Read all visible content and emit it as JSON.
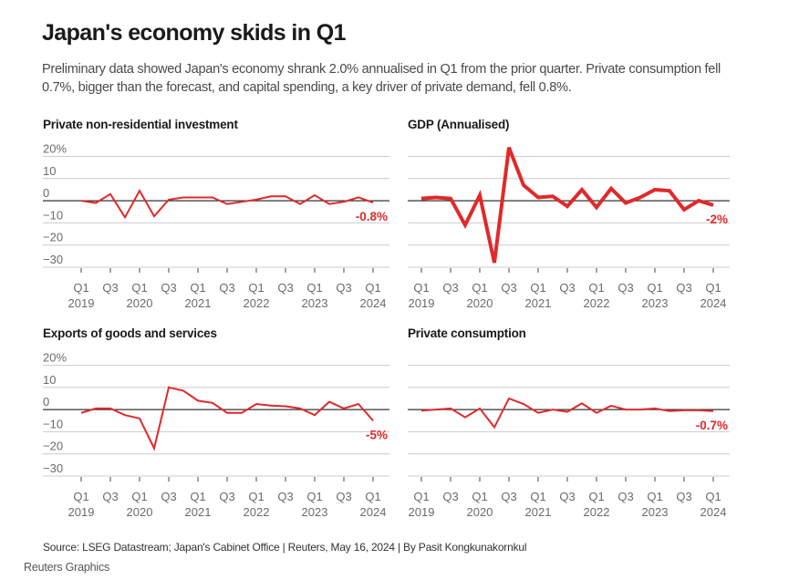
{
  "header": {
    "title": "Japan's economy skids in Q1",
    "subtitle": "Preliminary data showed Japan's economy shrank 2.0% annualised in Q1 from the prior quarter. Private consumption fell 0.7%, bigger than the forecast, and capital spending, a key driver of private demand, fell 0.8%."
  },
  "footer": {
    "source": "Source: LSEG Datastream; Japan's Cabinet Office | Reuters, May 16, 2024 | By Pasit Kongkunakornkul",
    "credit": "Reuters Graphics"
  },
  "colors": {
    "line": "#e0292b",
    "label": "#e0292b",
    "grid": "#cccccc",
    "zero": "#333333",
    "axis_text": "#6b6b6b"
  },
  "chart_data": [
    {
      "id": "investment",
      "type": "line",
      "title": "Private non-residential investment",
      "ylabel": "",
      "xlabel": "",
      "ylim": [
        -30,
        20
      ],
      "yticks": [
        20,
        10,
        0,
        -10,
        -20,
        -30
      ],
      "ytick_labels": [
        "20%",
        "10",
        "0",
        "−10",
        "−20",
        "−30"
      ],
      "show_y_labels": true,
      "grid": true,
      "x": [
        "Q1 2019",
        "Q2 2019",
        "Q3 2019",
        "Q4 2019",
        "Q1 2020",
        "Q2 2020",
        "Q3 2020",
        "Q4 2020",
        "Q1 2021",
        "Q2 2021",
        "Q3 2021",
        "Q4 2021",
        "Q1 2022",
        "Q2 2022",
        "Q3 2022",
        "Q4 2022",
        "Q1 2023",
        "Q2 2023",
        "Q3 2023",
        "Q4 2023",
        "Q1 2024"
      ],
      "xtick_labels": [
        [
          "Q1",
          "2019"
        ],
        [
          "Q3",
          ""
        ],
        [
          "Q1",
          "2020"
        ],
        [
          "Q3",
          ""
        ],
        [
          "Q1",
          "2021"
        ],
        [
          "Q3",
          ""
        ],
        [
          "Q1",
          "2022"
        ],
        [
          "Q3",
          ""
        ],
        [
          "Q1",
          "2023"
        ],
        [
          "Q3",
          ""
        ],
        [
          "Q1",
          "2024"
        ]
      ],
      "values": [
        0,
        -1,
        3,
        -7.5,
        4.5,
        -7,
        0.5,
        1.5,
        1.5,
        1.5,
        -1.5,
        -0.5,
        0.5,
        2,
        2,
        -1.5,
        2.5,
        -1.5,
        -0.5,
        1.5,
        -0.8
      ],
      "end_label": "-0.8%",
      "thick": false
    },
    {
      "id": "gdp",
      "type": "line",
      "title": "GDP (Annualised)",
      "ylabel": "",
      "xlabel": "",
      "ylim": [
        -30,
        20
      ],
      "yticks": [
        20,
        10,
        0,
        -10,
        -20,
        -30
      ],
      "ytick_labels": [],
      "show_y_labels": false,
      "grid": true,
      "x": [
        "Q1 2019",
        "Q2 2019",
        "Q3 2019",
        "Q4 2019",
        "Q1 2020",
        "Q2 2020",
        "Q3 2020",
        "Q4 2020",
        "Q1 2021",
        "Q2 2021",
        "Q3 2021",
        "Q4 2021",
        "Q1 2022",
        "Q2 2022",
        "Q3 2022",
        "Q4 2022",
        "Q1 2023",
        "Q2 2023",
        "Q3 2023",
        "Q4 2023",
        "Q1 2024"
      ],
      "xtick_labels": [
        [
          "Q1",
          "2019"
        ],
        [
          "Q3",
          ""
        ],
        [
          "Q1",
          "2020"
        ],
        [
          "Q3",
          ""
        ],
        [
          "Q1",
          "2021"
        ],
        [
          "Q3",
          ""
        ],
        [
          "Q1",
          "2022"
        ],
        [
          "Q3",
          ""
        ],
        [
          "Q1",
          "2023"
        ],
        [
          "Q3",
          ""
        ],
        [
          "Q1",
          "2024"
        ]
      ],
      "values": [
        1,
        1.5,
        1,
        -11,
        2.5,
        -28,
        24,
        7,
        1.5,
        2,
        -2.5,
        5,
        -3,
        5.5,
        -1,
        1.5,
        5,
        4.5,
        -4,
        0,
        -2
      ],
      "end_label": "-2%",
      "thick": true
    },
    {
      "id": "exports",
      "type": "line",
      "title": "Exports of goods and services",
      "ylabel": "",
      "xlabel": "",
      "ylim": [
        -30,
        20
      ],
      "yticks": [
        20,
        10,
        0,
        -10,
        -20,
        -30
      ],
      "ytick_labels": [
        "20%",
        "10",
        "0",
        "−10",
        "−20",
        "−30"
      ],
      "show_y_labels": true,
      "grid": true,
      "x": [
        "Q1 2019",
        "Q2 2019",
        "Q3 2019",
        "Q4 2019",
        "Q1 2020",
        "Q2 2020",
        "Q3 2020",
        "Q4 2020",
        "Q1 2021",
        "Q2 2021",
        "Q3 2021",
        "Q4 2021",
        "Q1 2022",
        "Q2 2022",
        "Q3 2022",
        "Q4 2022",
        "Q1 2023",
        "Q2 2023",
        "Q3 2023",
        "Q4 2023",
        "Q1 2024"
      ],
      "xtick_labels": [
        [
          "Q1",
          "2019"
        ],
        [
          "Q3",
          ""
        ],
        [
          "Q1",
          "2020"
        ],
        [
          "Q3",
          ""
        ],
        [
          "Q1",
          "2021"
        ],
        [
          "Q3",
          ""
        ],
        [
          "Q1",
          "2022"
        ],
        [
          "Q3",
          ""
        ],
        [
          "Q1",
          "2023"
        ],
        [
          "Q3",
          ""
        ],
        [
          "Q1",
          "2024"
        ]
      ],
      "values": [
        -1.5,
        0.5,
        0.5,
        -2.5,
        -4,
        -17.5,
        10,
        8.5,
        4,
        3,
        -1.5,
        -1.5,
        2.5,
        1.8,
        1.5,
        0.5,
        -2.5,
        3.5,
        0.5,
        2.5,
        -5
      ],
      "end_label": "-5%",
      "thick": false
    },
    {
      "id": "consumption",
      "type": "line",
      "title": "Private consumption",
      "ylabel": "",
      "xlabel": "",
      "ylim": [
        -30,
        20
      ],
      "yticks": [
        20,
        10,
        0,
        -10,
        -20,
        -30
      ],
      "ytick_labels": [],
      "show_y_labels": false,
      "grid": true,
      "x": [
        "Q1 2019",
        "Q2 2019",
        "Q3 2019",
        "Q4 2019",
        "Q1 2020",
        "Q2 2020",
        "Q3 2020",
        "Q4 2020",
        "Q1 2021",
        "Q2 2021",
        "Q3 2021",
        "Q4 2021",
        "Q1 2022",
        "Q2 2022",
        "Q3 2022",
        "Q4 2022",
        "Q1 2023",
        "Q2 2023",
        "Q3 2023",
        "Q4 2023",
        "Q1 2024"
      ],
      "xtick_labels": [
        [
          "Q1",
          "2019"
        ],
        [
          "Q3",
          ""
        ],
        [
          "Q1",
          "2020"
        ],
        [
          "Q3",
          ""
        ],
        [
          "Q1",
          "2021"
        ],
        [
          "Q3",
          ""
        ],
        [
          "Q1",
          "2022"
        ],
        [
          "Q3",
          ""
        ],
        [
          "Q1",
          "2023"
        ],
        [
          "Q3",
          ""
        ],
        [
          "Q1",
          "2024"
        ]
      ],
      "values": [
        -0.5,
        0,
        0.5,
        -3.5,
        0.5,
        -8,
        5,
        2.5,
        -1.5,
        0,
        -1,
        2.8,
        -1.5,
        1.7,
        0,
        0,
        0.5,
        -0.7,
        -0.3,
        -0.3,
        -0.7
      ],
      "end_label": "-0.7%",
      "thick": false
    }
  ]
}
